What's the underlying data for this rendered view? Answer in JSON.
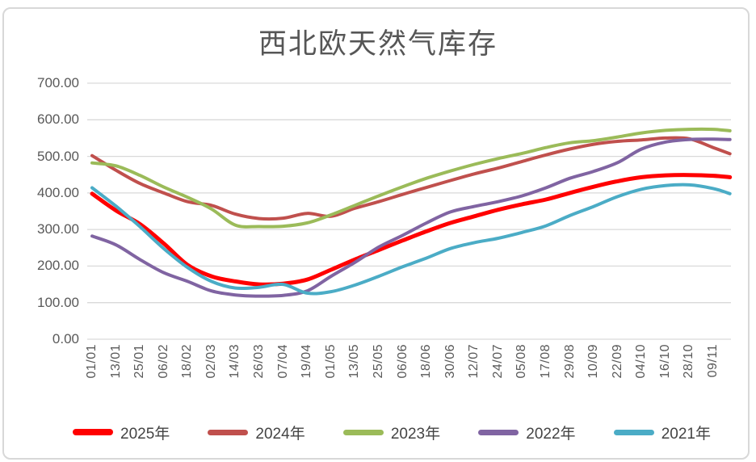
{
  "title": "西北欧天然气库存",
  "style": {
    "background": "#FFFFFF",
    "frame_border_color": "#D8D8D8",
    "gridline_color": "#D9D9D9",
    "axis_text_color": "#595959",
    "title_color": "#565656",
    "legend_text_color": "#444444"
  },
  "chart_data": {
    "type": "line",
    "title": "西北欧天然气库存",
    "xlabel": "",
    "ylabel": "",
    "ylim": [
      0,
      700
    ],
    "y_tick_step": 100,
    "grid": "horizontal",
    "legend_position": "bottom",
    "y_tick_labels": [
      "700.00",
      "600.00",
      "500.00",
      "400.00",
      "300.00",
      "200.00",
      "100.00",
      "0.00"
    ],
    "x_tick_labels": [
      "01/01",
      "13/01",
      "25/01",
      "06/02",
      "18/02",
      "02/03",
      "14/03",
      "26/03",
      "07/04",
      "19/04",
      "01/05",
      "13/05",
      "25/05",
      "06/06",
      "18/06",
      "30/06",
      "12/07",
      "24/07",
      "05/08",
      "17/08",
      "29/08",
      "10/09",
      "22/09",
      "04/10",
      "16/10",
      "28/10",
      "09/11"
    ],
    "x_note": "series values sampled at each x tick; one extra trailing sample beyond the last tick",
    "end_fraction": 26.7,
    "series": [
      {
        "name": "2025年",
        "color": "#FF0000",
        "line_width": 5,
        "values": [
          398,
          352,
          315,
          262,
          203,
          172,
          158,
          150,
          152,
          163,
          190,
          218,
          244,
          270,
          295,
          318,
          336,
          354,
          369,
          382,
          400,
          417,
          432,
          443,
          448,
          449,
          447,
          443
        ]
      },
      {
        "name": "2024年",
        "color": "#C0504D",
        "line_width": 4,
        "values": [
          502,
          462,
          426,
          400,
          376,
          366,
          342,
          330,
          331,
          344,
          336,
          358,
          376,
          396,
          415,
          434,
          452,
          468,
          486,
          504,
          520,
          533,
          541,
          545,
          550,
          548,
          524,
          507
        ]
      },
      {
        "name": "2023年",
        "color": "#9BBB59",
        "line_width": 4,
        "values": [
          482,
          474,
          448,
          416,
          388,
          356,
          312,
          308,
          309,
          318,
          340,
          366,
          392,
          417,
          440,
          460,
          478,
          494,
          508,
          524,
          537,
          543,
          553,
          564,
          571,
          574,
          574,
          570
        ]
      },
      {
        "name": "2022年",
        "color": "#8064A2",
        "line_width": 4,
        "values": [
          282,
          258,
          218,
          182,
          158,
          132,
          121,
          118,
          120,
          132,
          172,
          210,
          252,
          284,
          318,
          348,
          363,
          376,
          392,
          414,
          440,
          459,
          483,
          520,
          539,
          546,
          547,
          546
        ]
      },
      {
        "name": "2021年",
        "color": "#4BACC6",
        "line_width": 4,
        "values": [
          414,
          364,
          308,
          248,
          196,
          158,
          140,
          142,
          150,
          126,
          130,
          148,
          172,
          198,
          222,
          248,
          264,
          276,
          292,
          310,
          338,
          363,
          390,
          410,
          420,
          422,
          412,
          398
        ]
      }
    ]
  }
}
